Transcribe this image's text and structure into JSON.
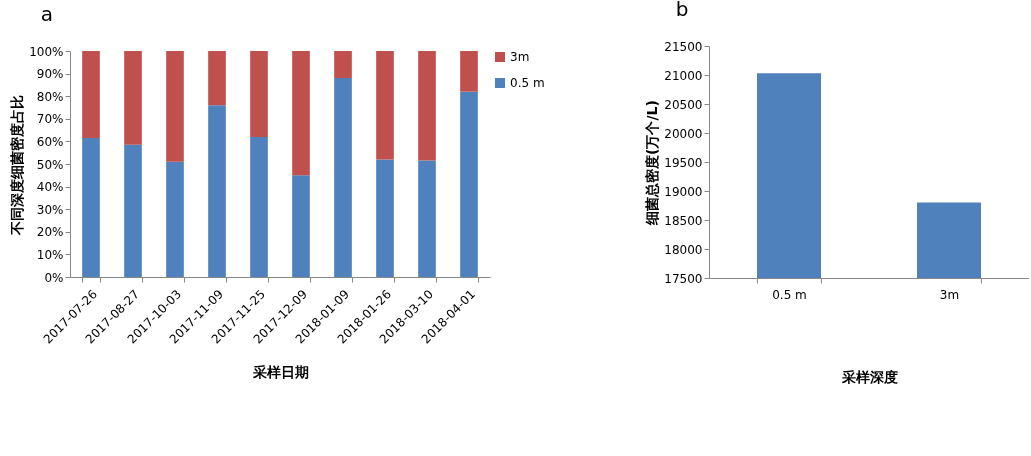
{
  "chart_data": [
    {
      "type": "bar",
      "title": "a",
      "xlabel": "采样日期",
      "ylabel": "不同深度细菌密度占比",
      "stacked": true,
      "legend": "right",
      "grid": false,
      "categories": [
        "2017-07-26",
        "2017-08-27",
        "2017-10-03",
        "2017-11-09",
        "2017-11-25",
        "2017-12-09",
        "2018-01-09",
        "2018-01-26",
        "2018-03-10",
        "2018-04-01"
      ],
      "series": [
        {
          "name": "0.5 m",
          "color": "#4f81bd",
          "values": [
            61.5,
            58.5,
            51,
            76,
            62,
            45,
            88,
            52,
            51.5,
            82
          ]
        },
        {
          "name": "3m",
          "color": "#c0504d",
          "values": [
            38.5,
            41.5,
            49,
            24,
            38,
            55,
            12,
            48,
            48.5,
            18
          ]
        }
      ],
      "ylim": [
        0,
        100
      ],
      "yticks": [
        {
          "value": 0,
          "label": "0%"
        },
        {
          "value": 10,
          "label": "10%"
        },
        {
          "value": 20,
          "label": "20%"
        },
        {
          "value": 30,
          "label": "30%"
        },
        {
          "value": 40,
          "label": "40%"
        },
        {
          "value": 50,
          "label": "50%"
        },
        {
          "value": 60,
          "label": "60%"
        },
        {
          "value": 70,
          "label": "70%"
        },
        {
          "value": 80,
          "label": "80%"
        },
        {
          "value": 90,
          "label": "90%"
        },
        {
          "value": 100,
          "label": "100%"
        }
      ]
    },
    {
      "type": "bar",
      "title": "b",
      "xlabel": "采样深度",
      "ylabel": "细菌总密度(万个/L)",
      "grid": false,
      "categories": [
        "0.5 m",
        "3m"
      ],
      "series": [
        {
          "color": "#4f81bd",
          "values": [
            21030,
            18800
          ]
        }
      ],
      "ylim": [
        17500,
        21500
      ],
      "yticks": [
        17500,
        18000,
        18500,
        19000,
        19500,
        20000,
        20500,
        21000,
        21500
      ]
    }
  ]
}
